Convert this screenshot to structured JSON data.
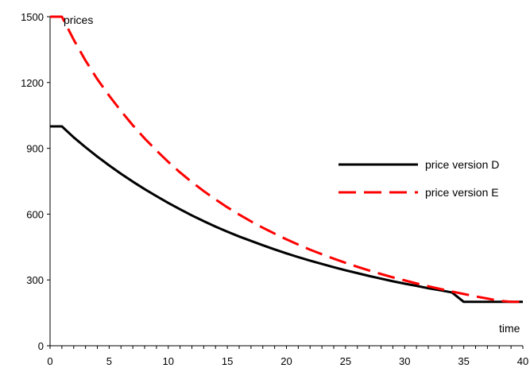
{
  "chart_data": {
    "type": "line",
    "title": "",
    "xlabel": "time",
    "ylabel": "prices",
    "xlim": [
      0,
      40
    ],
    "ylim": [
      0,
      1500
    ],
    "x_ticks": [
      0,
      5,
      10,
      15,
      20,
      25,
      30,
      35,
      40
    ],
    "y_ticks": [
      0,
      300,
      600,
      900,
      1200,
      1500
    ],
    "x_minor_step": 1,
    "grid": false,
    "legend": "right",
    "x": [
      0,
      1,
      2,
      3,
      4,
      5,
      6,
      7,
      8,
      9,
      10,
      11,
      12,
      13,
      14,
      15,
      16,
      17,
      18,
      19,
      20,
      21,
      22,
      23,
      24,
      25,
      26,
      27,
      28,
      29,
      30,
      31,
      32,
      33,
      34,
      35,
      36,
      37,
      38,
      39,
      40
    ],
    "series": [
      {
        "name": "price version D",
        "color": "#000000",
        "dash": "solid",
        "values": [
          1000,
          1000,
          950,
          905,
          862,
          822,
          784,
          748,
          714,
          682,
          651,
          622,
          594,
          568,
          543,
          520,
          498,
          478,
          458,
          439,
          421,
          404,
          388,
          373,
          358,
          344,
          331,
          318,
          306,
          294,
          283,
          273,
          262,
          253,
          243,
          200,
          200,
          200,
          200,
          200,
          200
        ]
      },
      {
        "name": "price version E",
        "color": "#ff0000",
        "dash": "dashed",
        "values": [
          1500,
          1500,
          1395,
          1300,
          1215,
          1140,
          1070,
          1005,
          945,
          890,
          838,
          790,
          746,
          705,
          667,
          631,
          598,
          567,
          538,
          511,
          485,
          461,
          438,
          417,
          397,
          378,
          360,
          343,
          327,
          312,
          298,
          284,
          271,
          259,
          247,
          236,
          225,
          215,
          205,
          200,
          200
        ]
      }
    ]
  }
}
